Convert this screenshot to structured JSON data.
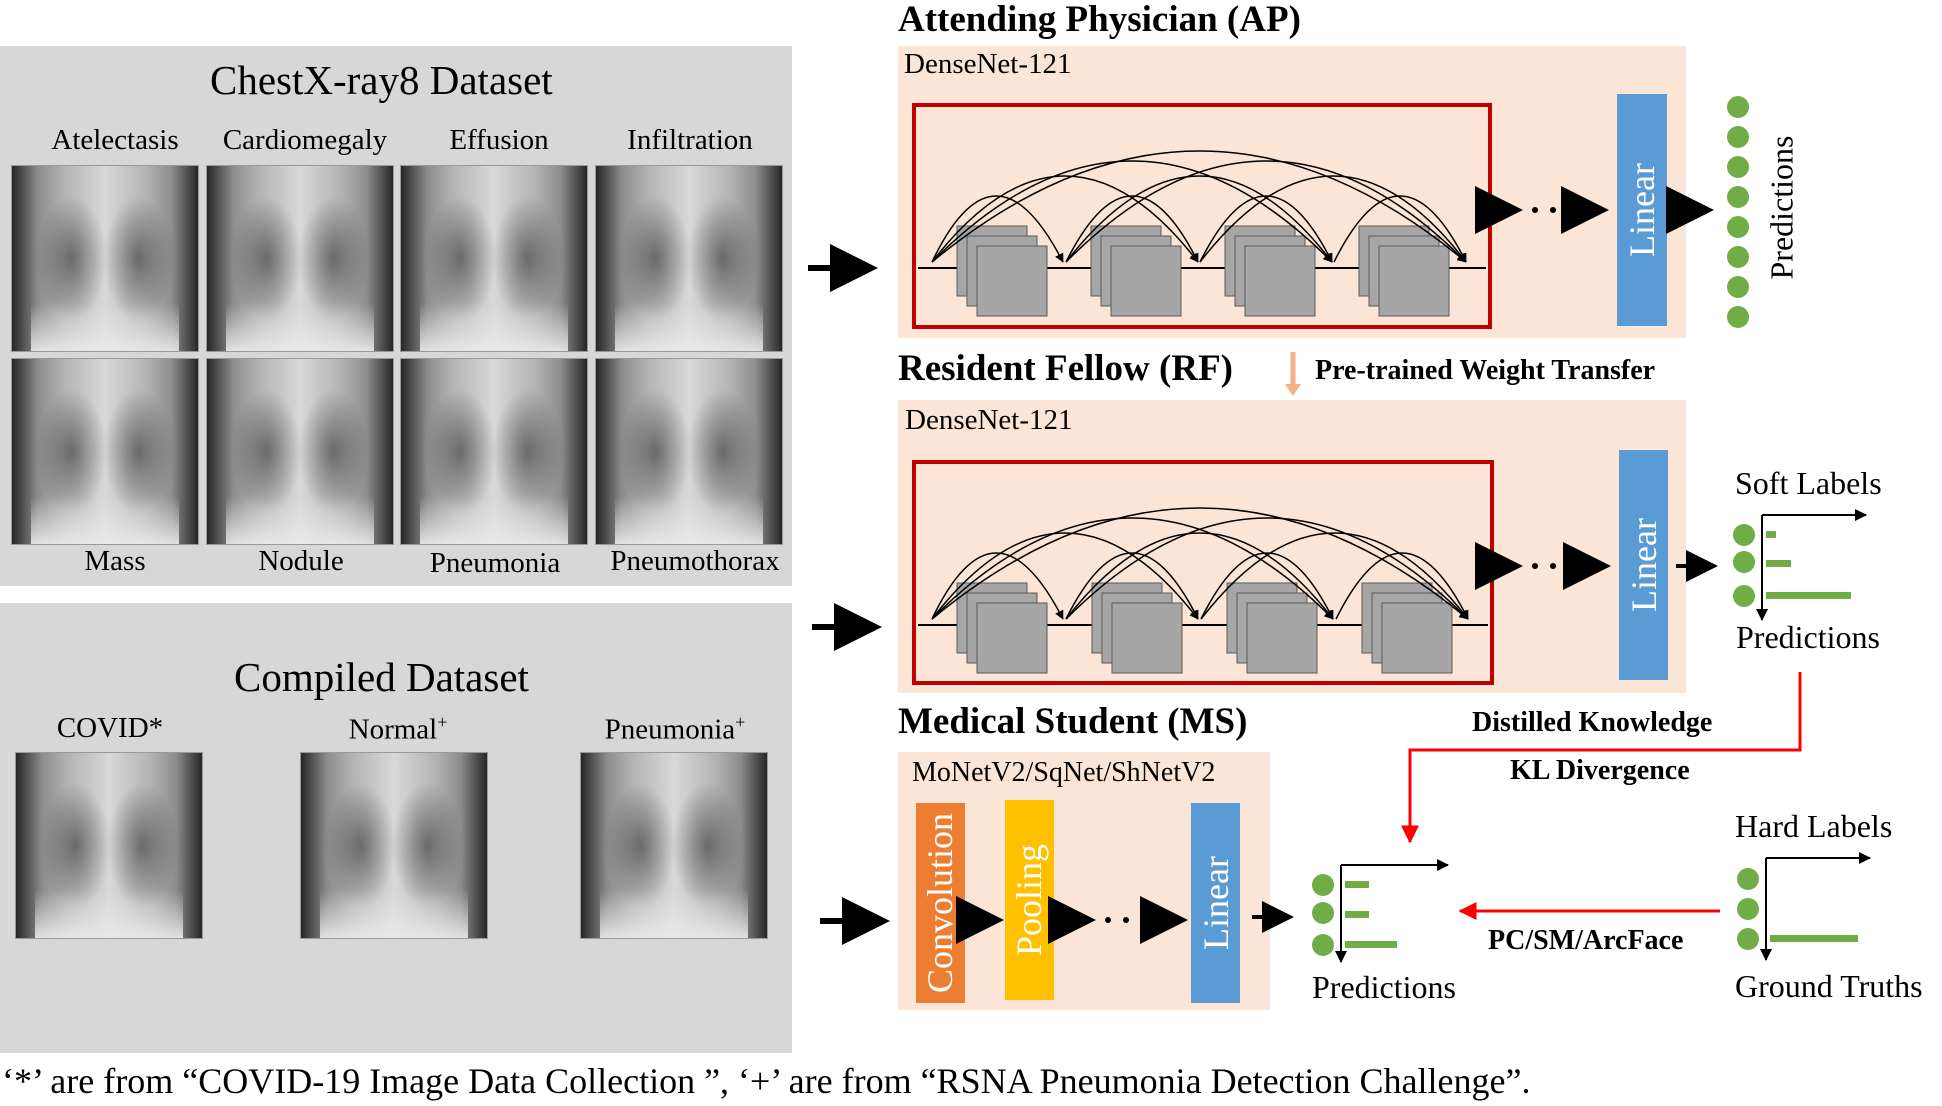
{
  "chestxray": {
    "title": "ChestX-ray8 Dataset",
    "top_labels": [
      "Atelectasis",
      "Cardiomegaly",
      "Effusion",
      "Infiltration"
    ],
    "bottom_labels": [
      "Mass",
      "Nodule",
      "Pneumonia",
      "Pneumothorax"
    ]
  },
  "compiled": {
    "title": "Compiled Dataset",
    "labels": [
      {
        "name": "COVID",
        "mark": "*"
      },
      {
        "name": "Normal",
        "mark": "+"
      },
      {
        "name": "Pneumonia",
        "mark": "+"
      }
    ]
  },
  "ap": {
    "title": "Attending Physician (AP)",
    "backbone": "DenseNet-121",
    "linear": "Linear",
    "predictions": "Predictions"
  },
  "rf": {
    "title": "Resident Fellow (RF)",
    "transfer": "Pre-trained Weight Transfer",
    "backbone": "DenseNet-121",
    "linear": "Linear",
    "soft_labels": "Soft Labels",
    "predictions": "Predictions",
    "bar_fractions": [
      0.1,
      0.25,
      0.85
    ]
  },
  "ms": {
    "title": "Medical Student (MS)",
    "backbone": "MoNetV2/SqNet/ShNetV2",
    "conv": "Convolution",
    "pool": "Pooling",
    "linear": "Linear",
    "predictions": "Predictions",
    "bar_fractions": [
      0.28,
      0.28,
      0.6
    ]
  },
  "labels": {
    "distilled": "Distilled Knowledge",
    "kl": "KL Divergence",
    "loss": "PC/SM/ArcFace",
    "hard_labels": "Hard Labels",
    "ground_truths": "Ground Truths",
    "gt_bar_fractions": [
      0,
      0,
      1
    ]
  },
  "footnote": "‘*’ are from “COVID-19 Image Data Collection ”, ‘+’ are from “RSNA Pneumonia Detection Challenge”.",
  "colors": {
    "panel": "#d7d7d7",
    "salmon": "#fbe5d6",
    "red": "#c00000",
    "blue": "#5b9bd5",
    "orange": "#ed7d31",
    "yellow": "#ffc000",
    "green": "#70ad47",
    "arrow_red": "#ff0000"
  }
}
